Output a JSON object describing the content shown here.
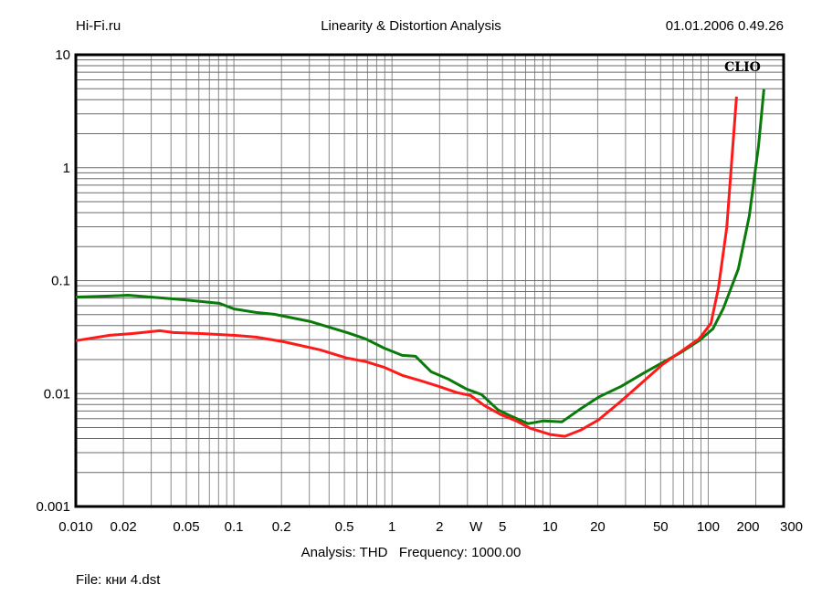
{
  "header": {
    "left": "Hi-Fi.ru",
    "center": "Linearity & Distortion Analysis",
    "right": "01.01.2006 0.49.26"
  },
  "footer": {
    "analysis": "Analysis: THD   Frequency: 1000.00",
    "file": "File: кни 4.dst"
  },
  "chart_data": {
    "type": "line",
    "title": "Linearity & Distortion Analysis",
    "logo": "CLIO",
    "xscale": "log",
    "yscale": "log",
    "xlim": [
      0.01,
      300
    ],
    "ylim": [
      0.001,
      10
    ],
    "grid": true,
    "xticks": [
      {
        "v": 0.01,
        "label": "0.010"
      },
      {
        "v": 0.02,
        "label": "0.02"
      },
      {
        "v": 0.05,
        "label": "0.05"
      },
      {
        "v": 0.1,
        "label": "0.1"
      },
      {
        "v": 0.2,
        "label": "0.2"
      },
      {
        "v": 0.5,
        "label": "0.5"
      },
      {
        "v": 1,
        "label": "1"
      },
      {
        "v": 2,
        "label": "2"
      },
      {
        "v": 3.4,
        "label": "W"
      },
      {
        "v": 5,
        "label": "5"
      },
      {
        "v": 10,
        "label": "10"
      },
      {
        "v": 20,
        "label": "20"
      },
      {
        "v": 50,
        "label": "50"
      },
      {
        "v": 100,
        "label": "100"
      },
      {
        "v": 200,
        "label": "200"
      },
      {
        "v": 300,
        "label": "300"
      }
    ],
    "yticks": [
      {
        "v": 10,
        "label": "10"
      },
      {
        "v": 1,
        "label": "1"
      },
      {
        "v": 0.1,
        "label": "0.1"
      },
      {
        "v": 0.01,
        "label": "0.01"
      },
      {
        "v": 0.001,
        "label": "0.001"
      }
    ],
    "series": [
      {
        "name": "green",
        "color": "#0a7a0a",
        "x": [
          0.01,
          0.0164,
          0.0214,
          0.0298,
          0.0475,
          0.081,
          0.1,
          0.138,
          0.18,
          0.306,
          0.52,
          0.68,
          0.89,
          1.16,
          1.41,
          1.77,
          2.25,
          2.94,
          3.68,
          4.69,
          5.72,
          7.26,
          9.1,
          11.9,
          15.5,
          20.2,
          28.2,
          39.4,
          51.4,
          67.1,
          87.5,
          107,
          125,
          155,
          182,
          208,
          225
        ],
        "y": [
          0.0716,
          0.073,
          0.0743,
          0.0716,
          0.0678,
          0.0629,
          0.0562,
          0.0522,
          0.0503,
          0.0434,
          0.0347,
          0.0305,
          0.0253,
          0.0218,
          0.0214,
          0.0156,
          0.0135,
          0.011,
          0.0098,
          0.00716,
          0.00628,
          0.00542,
          0.00573,
          0.00562,
          0.0073,
          0.0093,
          0.0116,
          0.0153,
          0.0188,
          0.0231,
          0.0294,
          0.0374,
          0.0573,
          0.127,
          0.374,
          1.56,
          4.94
        ]
      },
      {
        "name": "red",
        "color": "#ff1a1a",
        "x": [
          0.01,
          0.0164,
          0.0228,
          0.034,
          0.0415,
          0.062,
          0.1,
          0.138,
          0.205,
          0.35,
          0.52,
          0.68,
          0.89,
          1.16,
          1.51,
          1.97,
          2.57,
          3.14,
          3.83,
          4.87,
          6.11,
          7.46,
          10,
          12.4,
          15.7,
          20.2,
          28.2,
          39.4,
          51.4,
          67.1,
          87.5,
          104,
          116,
          131,
          151
        ],
        "y": [
          0.0294,
          0.0328,
          0.034,
          0.036,
          0.0347,
          0.034,
          0.0328,
          0.0316,
          0.0288,
          0.0244,
          0.0206,
          0.0192,
          0.0171,
          0.0145,
          0.013,
          0.0116,
          0.0102,
          0.0096,
          0.00785,
          0.00653,
          0.00573,
          0.00494,
          0.00434,
          0.00418,
          0.00476,
          0.00583,
          0.0086,
          0.013,
          0.0181,
          0.0235,
          0.0305,
          0.0418,
          0.0861,
          0.294,
          4.26
        ]
      }
    ]
  }
}
